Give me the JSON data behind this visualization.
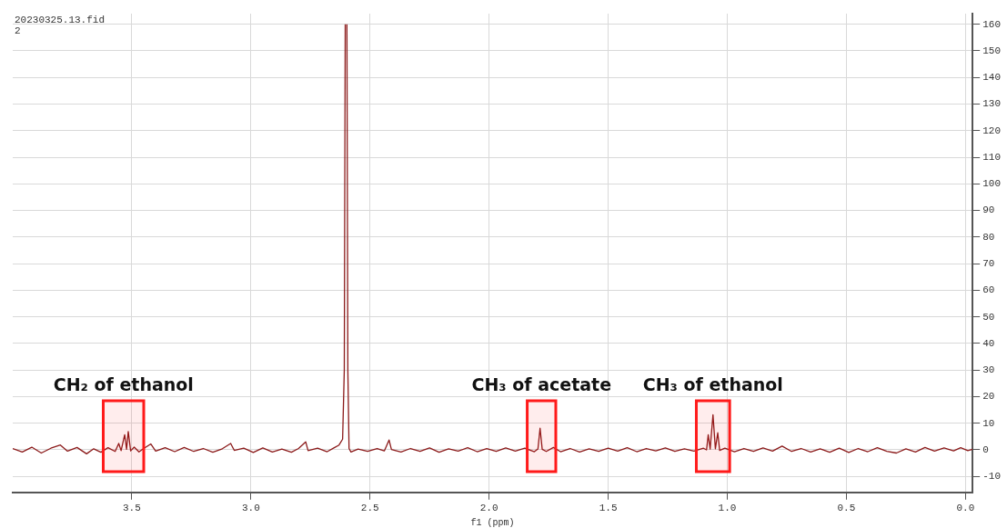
{
  "chart_data": {
    "type": "line",
    "xlabel": "f1 (ppm)",
    "annotations": [
      "20230325.13.fid",
      "2"
    ],
    "bands": [
      {
        "axis": "x",
        "from": 3.62,
        "to": 3.45,
        "label": "CH₂ of ethanol",
        "color": "#ff1a1a"
      },
      {
        "axis": "x",
        "from": 1.84,
        "to": 1.72,
        "label": "CH₃ of acetate",
        "color": "#ff1a1a"
      },
      {
        "axis": "x",
        "from": 1.13,
        "to": 0.99,
        "label": "CH₃ of ethanol",
        "color": "#ff1a1a"
      }
    ],
    "x": [
      4.0,
      3.96,
      3.92,
      3.88,
      3.84,
      3.8,
      3.77,
      3.73,
      3.69,
      3.66,
      3.63,
      3.6,
      3.57,
      3.555,
      3.545,
      3.53,
      3.522,
      3.515,
      3.505,
      3.49,
      3.47,
      3.45,
      3.42,
      3.4,
      3.36,
      3.32,
      3.28,
      3.24,
      3.2,
      3.16,
      3.12,
      3.085,
      3.07,
      3.03,
      2.99,
      2.95,
      2.91,
      2.87,
      2.83,
      2.8,
      2.77,
      2.76,
      2.72,
      2.68,
      2.65,
      2.63,
      2.615,
      2.608,
      2.604,
      2.6005,
      2.597,
      2.593,
      2.588,
      2.58,
      2.55,
      2.51,
      2.47,
      2.44,
      2.42,
      2.41,
      2.37,
      2.33,
      2.29,
      2.25,
      2.21,
      2.17,
      2.13,
      2.09,
      2.05,
      2.01,
      1.97,
      1.93,
      1.89,
      1.85,
      1.81,
      1.795,
      1.786,
      1.777,
      1.76,
      1.73,
      1.7,
      1.66,
      1.62,
      1.58,
      1.54,
      1.5,
      1.46,
      1.42,
      1.38,
      1.34,
      1.3,
      1.26,
      1.22,
      1.18,
      1.14,
      1.1,
      1.087,
      1.08,
      1.072,
      1.06,
      1.05,
      1.04,
      1.032,
      1.01,
      0.97,
      0.93,
      0.89,
      0.85,
      0.81,
      0.77,
      0.73,
      0.69,
      0.65,
      0.61,
      0.57,
      0.53,
      0.49,
      0.45,
      0.41,
      0.37,
      0.33,
      0.29,
      0.25,
      0.21,
      0.17,
      0.13,
      0.09,
      0.05,
      0.02,
      -0.01,
      -0.03
    ],
    "series": [
      {
        "color": "#8b1a1a",
        "values": [
          0.5,
          -0.8,
          1.0,
          -1.2,
          0.6,
          1.8,
          -0.5,
          0.9,
          -1.5,
          0.4,
          -0.9,
          0.8,
          -0.6,
          2.4,
          -0.3,
          5.7,
          0.2,
          6.9,
          -0.4,
          1.0,
          -0.8,
          0.5,
          2.2,
          -0.5,
          0.8,
          -0.7,
          0.9,
          -0.6,
          0.5,
          -0.9,
          0.4,
          2.4,
          -0.2,
          0.6,
          -1.0,
          0.7,
          -0.8,
          0.3,
          -0.9,
          0.5,
          3.0,
          -0.3,
          0.6,
          -0.7,
          0.8,
          1.8,
          4.0,
          30,
          160,
          null,
          160,
          30,
          0.5,
          -0.8,
          0.3,
          -0.6,
          0.5,
          -0.4,
          3.7,
          0.1,
          -0.8,
          0.5,
          -0.6,
          0.7,
          -0.9,
          0.4,
          -0.5,
          0.8,
          -0.7,
          0.5,
          -0.6,
          0.7,
          -0.5,
          0.6,
          -0.7,
          0.3,
          8.1,
          0.2,
          -0.6,
          0.9,
          -0.7,
          0.5,
          -0.8,
          0.4,
          -0.6,
          0.6,
          -0.5,
          0.8,
          -0.7,
          0.5,
          -0.4,
          0.7,
          -0.6,
          0.4,
          -0.5,
          0.6,
          0.0,
          5.7,
          0.3,
          13.2,
          0.4,
          6.4,
          -0.2,
          0.6,
          -0.7,
          0.5,
          -0.6,
          0.7,
          -0.5,
          1.4,
          -0.6,
          0.5,
          -0.8,
          0.4,
          -0.9,
          0.6,
          -1.0,
          0.5,
          -0.7,
          0.8,
          -0.6,
          -1.2,
          0.4,
          -0.8,
          0.9,
          -0.5,
          0.7,
          -0.4,
          0.8,
          -0.3,
          0.2
        ]
      }
    ],
    "xlim": [
      4.0,
      -0.03
    ],
    "ylim": [
      -16,
      164
    ],
    "xticks": [
      {
        "value": 3.5,
        "label": "3.5"
      },
      {
        "value": 3.0,
        "label": "3.0"
      },
      {
        "value": 2.5,
        "label": "2.5"
      },
      {
        "value": 2.0,
        "label": "2.0"
      },
      {
        "value": 1.5,
        "label": "1.5"
      },
      {
        "value": 1.0,
        "label": "1.0"
      },
      {
        "value": 0.5,
        "label": "0.5"
      },
      {
        "value": 0.0,
        "label": "0.0"
      }
    ],
    "yticks": [
      -10,
      0,
      10,
      20,
      30,
      40,
      50,
      60,
      70,
      80,
      90,
      100,
      110,
      120,
      130,
      140,
      150,
      160
    ],
    "grid": true,
    "legend": false,
    "marker": "none",
    "line_style": "solid"
  }
}
